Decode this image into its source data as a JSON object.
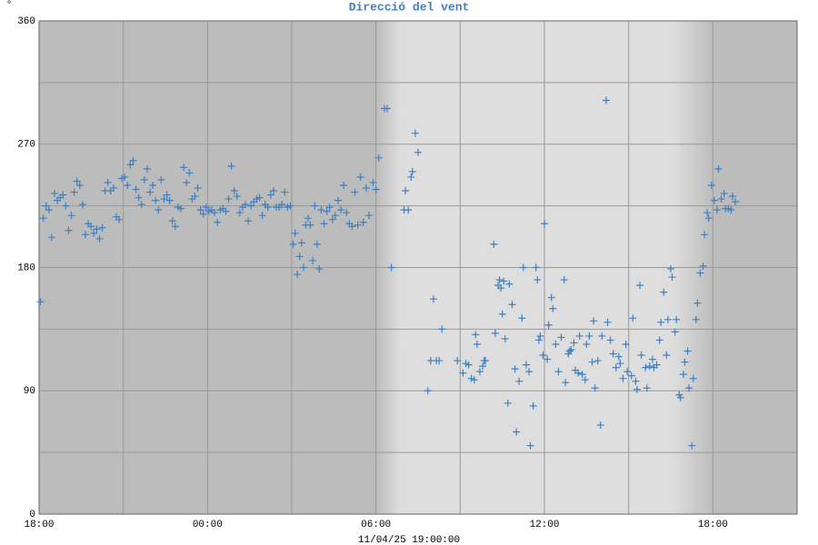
{
  "chart_data": {
    "type": "scatter",
    "title": "Direcció del vent",
    "y_unit": "°",
    "x_label": "11/04/25 19:00:00",
    "color": "#3f7fbf",
    "marker": "+",
    "grid": true,
    "xlim": [
      0,
      27
    ],
    "xticks": [
      {
        "value": 0,
        "label": "18:00"
      },
      {
        "value": 6,
        "label": "00:00"
      },
      {
        "value": 12,
        "label": "06:00"
      },
      {
        "value": 18,
        "label": "12:00"
      },
      {
        "value": 24,
        "label": "18:00"
      }
    ],
    "xminor": [
      3,
      9,
      15,
      21
    ],
    "ylim": [
      0,
      360
    ],
    "yticks": [
      0,
      90,
      180,
      270,
      360
    ],
    "yminor": [
      45,
      135,
      225,
      315
    ],
    "x": [
      0.05,
      0.15,
      0.25,
      0.35,
      0.45,
      0.55,
      0.65,
      0.75,
      0.85,
      0.95,
      1.05,
      1.15,
      1.25,
      1.35,
      1.45,
      1.55,
      1.65,
      1.75,
      1.85,
      1.95,
      2.05,
      2.15,
      2.25,
      2.35,
      2.45,
      2.55,
      2.65,
      2.75,
      2.85,
      2.95,
      3.05,
      3.15,
      3.25,
      3.35,
      3.45,
      3.55,
      3.65,
      3.75,
      3.85,
      3.95,
      4.05,
      4.15,
      4.25,
      4.35,
      4.45,
      4.55,
      4.65,
      4.75,
      4.85,
      4.95,
      5.05,
      5.15,
      5.25,
      5.35,
      5.45,
      5.55,
      5.65,
      5.75,
      5.85,
      5.95,
      6.05,
      6.15,
      6.25,
      6.35,
      6.45,
      6.55,
      6.65,
      6.75,
      6.85,
      6.95,
      7.05,
      7.15,
      7.25,
      7.35,
      7.45,
      7.55,
      7.65,
      7.75,
      7.85,
      7.95,
      8.05,
      8.15,
      8.25,
      8.35,
      8.45,
      8.55,
      8.65,
      8.75,
      8.85,
      8.95,
      9.05,
      9.12,
      9.2,
      9.28,
      9.35,
      9.42,
      9.5,
      9.58,
      9.66,
      9.75,
      9.82,
      9.9,
      9.98,
      10.05,
      10.15,
      10.25,
      10.35,
      10.45,
      10.55,
      10.65,
      10.75,
      10.85,
      10.95,
      11.05,
      11.15,
      11.25,
      11.35,
      11.45,
      11.55,
      11.65,
      11.75,
      11.9,
      12.0,
      12.1,
      12.3,
      12.4,
      12.55,
      13.0,
      13.05,
      13.15,
      13.25,
      13.3,
      13.4,
      13.5,
      13.85,
      13.95,
      14.05,
      14.15,
      14.25,
      14.35,
      14.9,
      15.1,
      15.2,
      15.3,
      15.4,
      15.5,
      15.55,
      15.6,
      15.7,
      15.8,
      15.85,
      15.9,
      16.2,
      16.25,
      16.35,
      16.4,
      16.45,
      16.5,
      16.55,
      16.6,
      16.7,
      16.75,
      16.85,
      16.95,
      17.0,
      17.1,
      17.2,
      17.25,
      17.35,
      17.45,
      17.5,
      17.6,
      17.7,
      17.75,
      17.8,
      17.85,
      17.95,
      18.0,
      18.1,
      18.15,
      18.25,
      18.3,
      18.4,
      18.5,
      18.6,
      18.7,
      18.75,
      18.85,
      18.9,
      18.95,
      19.05,
      19.1,
      19.2,
      19.25,
      19.35,
      19.45,
      19.5,
      19.6,
      19.7,
      19.75,
      19.8,
      19.9,
      20.0,
      20.05,
      20.2,
      20.25,
      20.35,
      20.45,
      20.55,
      20.65,
      20.7,
      20.8,
      20.9,
      20.95,
      21.1,
      21.15,
      21.25,
      21.3,
      21.4,
      21.45,
      21.6,
      21.65,
      21.75,
      21.85,
      21.9,
      22.0,
      22.1,
      22.15,
      22.25,
      22.35,
      22.4,
      22.5,
      22.55,
      22.65,
      22.7,
      22.8,
      22.85,
      22.95,
      23.0,
      23.1,
      23.15,
      23.25,
      23.3,
      23.4,
      23.45,
      23.55,
      23.65,
      23.7,
      23.8,
      23.85,
      23.95,
      24.05,
      24.15,
      24.2,
      24.3,
      24.4,
      24.45,
      24.55,
      24.65,
      24.7,
      24.8
    ],
    "values": [
      155,
      216,
      225,
      222,
      202,
      234,
      229,
      231,
      233,
      225,
      207,
      218,
      235,
      243,
      240,
      226,
      204,
      212,
      210,
      205,
      208,
      201,
      209,
      236,
      242,
      236,
      238,
      217,
      215,
      245,
      246,
      240,
      255,
      258,
      237,
      231,
      226,
      244,
      252,
      235,
      240,
      229,
      222,
      244,
      230,
      233,
      229,
      214,
      210,
      224,
      223,
      253,
      242,
      249,
      230,
      232,
      238,
      222,
      219,
      224,
      221,
      222,
      220,
      213,
      222,
      223,
      221,
      230,
      254,
      236,
      232,
      220,
      224,
      226,
      214,
      225,
      228,
      230,
      231,
      218,
      226,
      224,
      233,
      236,
      224,
      224,
      226,
      235,
      224,
      225,
      197,
      205,
      175,
      188,
      198,
      180,
      211,
      216,
      211,
      185,
      225,
      197,
      179,
      222,
      212,
      221,
      224,
      215,
      218,
      229,
      222,
      240,
      220,
      212,
      210,
      235,
      211,
      246,
      213,
      238,
      218,
      242,
      237,
      260,
      296,
      296,
      180,
      222,
      236,
      222,
      246,
      250,
      278,
      264,
      90,
      112,
      157,
      112,
      112,
      135,
      112,
      103,
      110,
      109,
      99,
      98,
      131,
      124,
      104,
      108,
      112,
      112,
      197,
      132,
      167,
      171,
      165,
      146,
      170,
      128,
      81,
      168,
      153,
      106,
      60,
      97,
      143,
      180,
      109,
      104,
      50,
      79,
      180,
      171,
      127,
      130,
      116,
      212,
      113,
      138,
      158,
      150,
      124,
      104,
      129,
      171,
      96,
      117,
      119,
      120,
      125,
      105,
      103,
      130,
      102,
      98,
      124,
      130,
      111,
      141,
      92,
      112,
      65,
      130,
      302,
      140,
      127,
      117,
      107,
      115,
      110,
      99,
      124,
      104,
      101,
      143,
      97,
      91,
      167,
      116,
      107,
      92,
      108,
      113,
      107,
      109,
      127,
      140,
      162,
      116,
      142,
      179,
      173,
      133,
      142,
      87,
      85,
      102,
      111,
      119,
      92,
      50,
      99,
      142,
      154,
      176,
      181,
      204,
      220,
      216,
      240,
      229,
      222,
      252,
      230,
      234,
      223,
      223,
      222,
      232,
      228
    ]
  }
}
